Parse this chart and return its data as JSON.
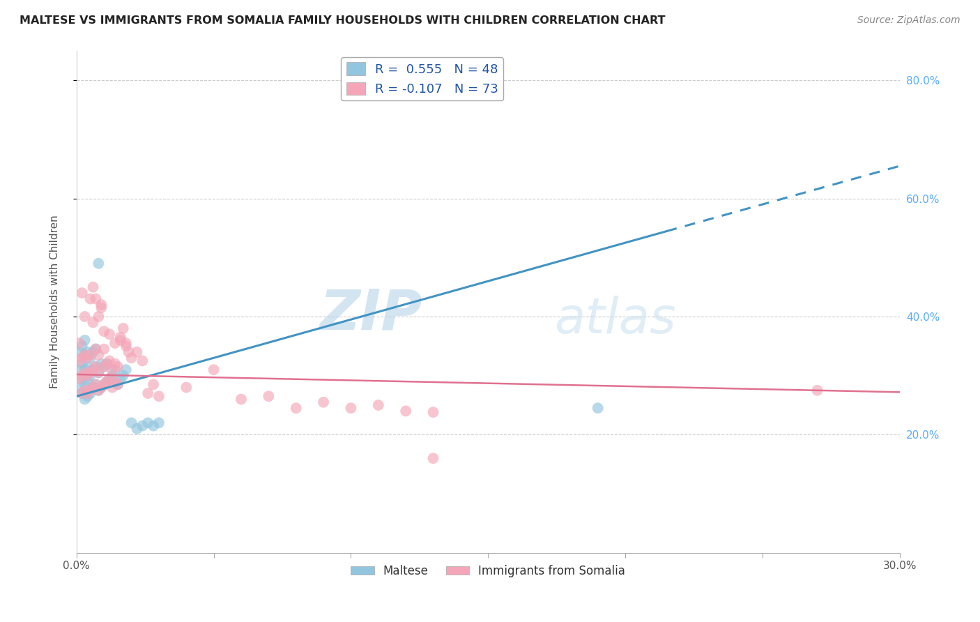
{
  "title": "MALTESE VS IMMIGRANTS FROM SOMALIA FAMILY HOUSEHOLDS WITH CHILDREN CORRELATION CHART",
  "source": "Source: ZipAtlas.com",
  "ylabel": "Family Households with Children",
  "xlim": [
    0.0,
    0.3
  ],
  "ylim": [
    0.0,
    0.85
  ],
  "xticks": [
    0.0,
    0.05,
    0.1,
    0.15,
    0.2,
    0.25,
    0.3
  ],
  "yticks": [
    0.2,
    0.4,
    0.6,
    0.8
  ],
  "xtick_labels": [
    "0.0%",
    "",
    "",
    "",
    "",
    "",
    "30.0%"
  ],
  "ytick_labels_right": [
    "20.0%",
    "40.0%",
    "60.0%",
    "80.0%"
  ],
  "blue_R": 0.555,
  "blue_N": 48,
  "pink_R": -0.107,
  "pink_N": 73,
  "blue_color": "#92c5de",
  "pink_color": "#f4a6b8",
  "blue_line_color": "#4393c3",
  "pink_line_color": "#e07090",
  "watermark_zip": "ZIP",
  "watermark_atlas": "atlas",
  "legend_labels": [
    "Maltese",
    "Immigrants from Somalia"
  ],
  "blue_scatter_x": [
    0.001,
    0.001,
    0.001,
    0.002,
    0.002,
    0.002,
    0.002,
    0.003,
    0.003,
    0.003,
    0.003,
    0.003,
    0.004,
    0.004,
    0.004,
    0.004,
    0.005,
    0.005,
    0.005,
    0.006,
    0.006,
    0.006,
    0.007,
    0.007,
    0.007,
    0.008,
    0.008,
    0.009,
    0.009,
    0.01,
    0.01,
    0.011,
    0.011,
    0.012,
    0.013,
    0.014,
    0.015,
    0.016,
    0.017,
    0.018,
    0.02,
    0.022,
    0.024,
    0.026,
    0.028,
    0.03,
    0.008,
    0.19
  ],
  "blue_scatter_y": [
    0.28,
    0.31,
    0.34,
    0.27,
    0.295,
    0.32,
    0.35,
    0.26,
    0.285,
    0.31,
    0.335,
    0.36,
    0.265,
    0.29,
    0.315,
    0.34,
    0.27,
    0.3,
    0.33,
    0.28,
    0.31,
    0.34,
    0.285,
    0.315,
    0.345,
    0.275,
    0.305,
    0.28,
    0.32,
    0.285,
    0.315,
    0.29,
    0.32,
    0.295,
    0.3,
    0.31,
    0.285,
    0.295,
    0.3,
    0.31,
    0.22,
    0.21,
    0.215,
    0.22,
    0.215,
    0.22,
    0.49,
    0.245
  ],
  "pink_scatter_x": [
    0.001,
    0.001,
    0.001,
    0.002,
    0.002,
    0.002,
    0.003,
    0.003,
    0.003,
    0.004,
    0.004,
    0.004,
    0.005,
    0.005,
    0.005,
    0.006,
    0.006,
    0.006,
    0.007,
    0.007,
    0.007,
    0.008,
    0.008,
    0.008,
    0.009,
    0.009,
    0.009,
    0.01,
    0.01,
    0.01,
    0.011,
    0.011,
    0.012,
    0.012,
    0.013,
    0.013,
    0.014,
    0.014,
    0.015,
    0.015,
    0.016,
    0.017,
    0.018,
    0.019,
    0.02,
    0.022,
    0.024,
    0.026,
    0.028,
    0.03,
    0.04,
    0.05,
    0.06,
    0.07,
    0.08,
    0.09,
    0.1,
    0.11,
    0.12,
    0.13,
    0.002,
    0.003,
    0.005,
    0.006,
    0.007,
    0.008,
    0.01,
    0.012,
    0.014,
    0.016,
    0.018,
    0.27,
    0.13
  ],
  "pink_scatter_y": [
    0.295,
    0.325,
    0.355,
    0.27,
    0.3,
    0.33,
    0.275,
    0.305,
    0.335,
    0.27,
    0.3,
    0.33,
    0.275,
    0.305,
    0.335,
    0.28,
    0.31,
    0.45,
    0.285,
    0.315,
    0.345,
    0.275,
    0.305,
    0.335,
    0.28,
    0.42,
    0.415,
    0.285,
    0.315,
    0.345,
    0.29,
    0.32,
    0.295,
    0.325,
    0.28,
    0.31,
    0.29,
    0.32,
    0.285,
    0.315,
    0.365,
    0.38,
    0.355,
    0.34,
    0.33,
    0.34,
    0.325,
    0.27,
    0.285,
    0.265,
    0.28,
    0.31,
    0.26,
    0.265,
    0.245,
    0.255,
    0.245,
    0.25,
    0.24,
    0.238,
    0.44,
    0.4,
    0.43,
    0.39,
    0.43,
    0.4,
    0.375,
    0.37,
    0.355,
    0.36,
    0.35,
    0.275,
    0.16
  ]
}
